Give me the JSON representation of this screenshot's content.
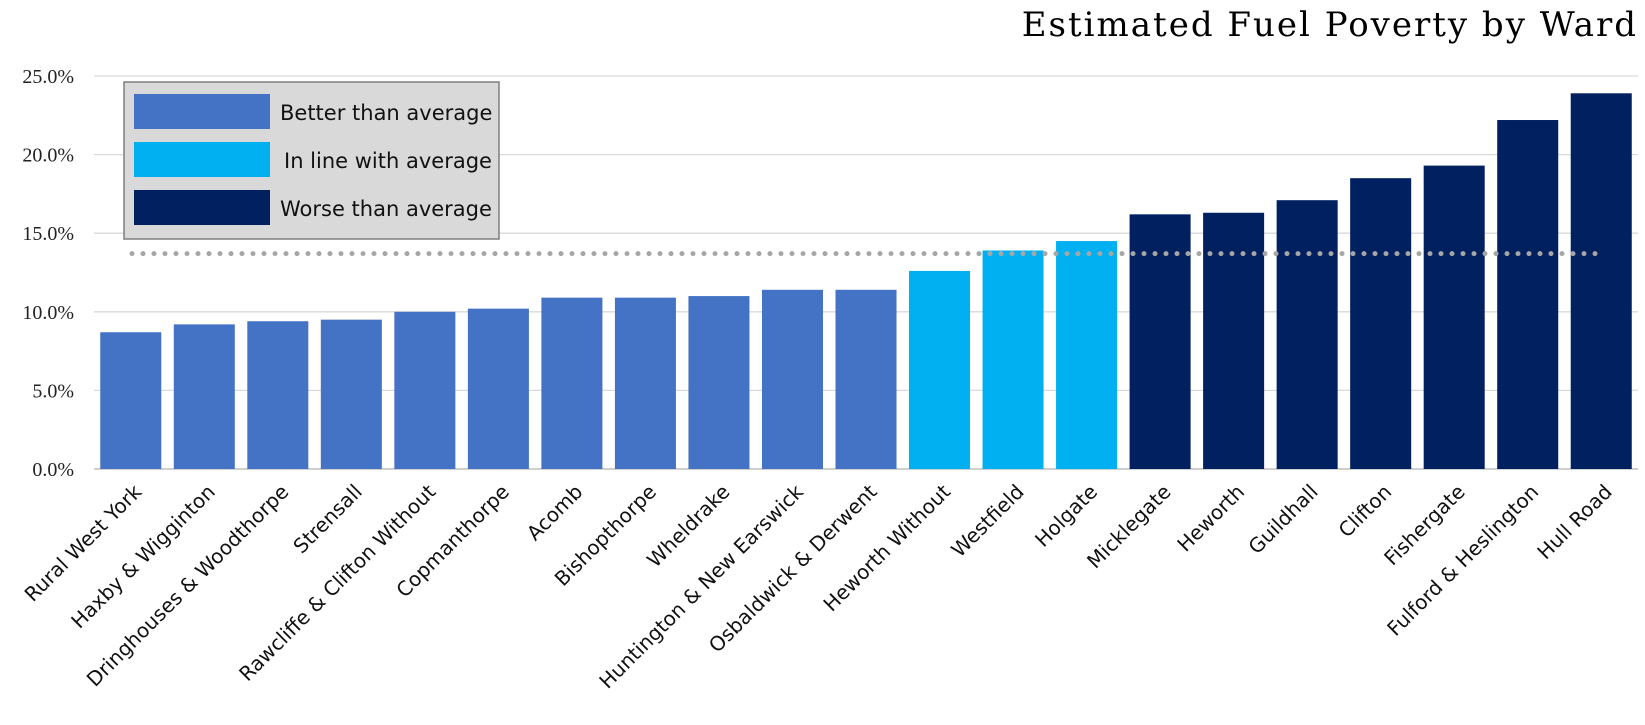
{
  "chart_data": {
    "type": "bar",
    "title": "Estimated Fuel Poverty by Ward",
    "xlabel": "",
    "ylabel": "",
    "ylim": [
      0,
      25
    ],
    "y_ticks": [
      0,
      5,
      10,
      15,
      20,
      25
    ],
    "y_tick_labels": [
      "0.0%",
      "5.0%",
      "10.0%",
      "15.0%",
      "20.0%",
      "25.0%"
    ],
    "grid": true,
    "legend_position": "top-left",
    "average_line": {
      "value": 13.7,
      "style": "dotted",
      "color": "#a6a6a6"
    },
    "categories": [
      "Rural West York",
      "Haxby & Wigginton",
      "Dringhouses & Woodthorpe",
      "Strensall",
      "Rawcliffe & Clifton Without",
      "Copmanthorpe",
      "Acomb",
      "Bishopthorpe",
      "Wheldrake",
      "Huntington & New Earswick",
      "Osbaldwick & Derwent",
      "Heworth Without",
      "Westfield",
      "Holgate",
      "Micklegate",
      "Heworth",
      "Guildhall",
      "Clifton",
      "Fishergate",
      "Fulford & Heslington",
      "Hull Road"
    ],
    "values": [
      8.7,
      9.2,
      9.4,
      9.5,
      10.0,
      10.2,
      10.9,
      10.9,
      11.0,
      11.4,
      11.4,
      12.6,
      13.9,
      14.5,
      16.2,
      16.3,
      17.1,
      18.5,
      19.3,
      22.2,
      23.9
    ],
    "groups": [
      "better",
      "better",
      "better",
      "better",
      "better",
      "better",
      "better",
      "better",
      "better",
      "better",
      "better",
      "inline",
      "inline",
      "inline",
      "worse",
      "worse",
      "worse",
      "worse",
      "worse",
      "worse",
      "worse"
    ],
    "legend": [
      {
        "key": "better",
        "label": "Better than average",
        "color": "#4472c4"
      },
      {
        "key": "inline",
        "label": "In line with average",
        "color": "#00b0f0"
      },
      {
        "key": "worse",
        "label": "Worse than average",
        "color": "#002060"
      }
    ]
  }
}
